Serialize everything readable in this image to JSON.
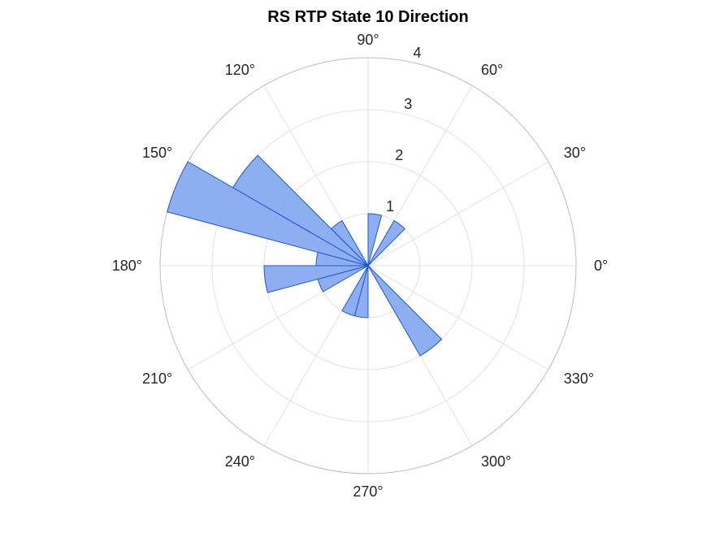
{
  "chart_data": {
    "type": "polar-histogram",
    "title": "RS  RTP State 10 Direction",
    "theta_unit": "degrees",
    "theta_direction": "counterclockwise",
    "theta_zero": "right",
    "theta_ticks": [
      0,
      30,
      60,
      90,
      120,
      150,
      180,
      210,
      240,
      270,
      300,
      330
    ],
    "theta_tick_labels": [
      "0°",
      "30°",
      "60°",
      "90°",
      "120°",
      "150°",
      "180°",
      "210°",
      "240°",
      "270°",
      "300°",
      "330°"
    ],
    "r_ticks": [
      1,
      2,
      3,
      4
    ],
    "r_tick_labels": [
      "1",
      "2",
      "3",
      "4"
    ],
    "rlim": [
      0,
      4
    ],
    "r_tick_label_angle": 80,
    "bin_width": 15,
    "face_color": "#7aa0f0",
    "edge_color": "#1f57d6",
    "grid": true,
    "bins": [
      {
        "start": 45,
        "end": 60,
        "value": 1
      },
      {
        "start": 75,
        "end": 90,
        "value": 1
      },
      {
        "start": 120,
        "end": 135,
        "value": 1
      },
      {
        "start": 135,
        "end": 150,
        "value": 3
      },
      {
        "start": 150,
        "end": 165,
        "value": 4
      },
      {
        "start": 165,
        "end": 180,
        "value": 1
      },
      {
        "start": 180,
        "end": 195,
        "value": 2
      },
      {
        "start": 195,
        "end": 210,
        "value": 1
      },
      {
        "start": 240,
        "end": 255,
        "value": 1
      },
      {
        "start": 255,
        "end": 270,
        "value": 1
      },
      {
        "start": 300,
        "end": 315,
        "value": 2
      }
    ]
  }
}
